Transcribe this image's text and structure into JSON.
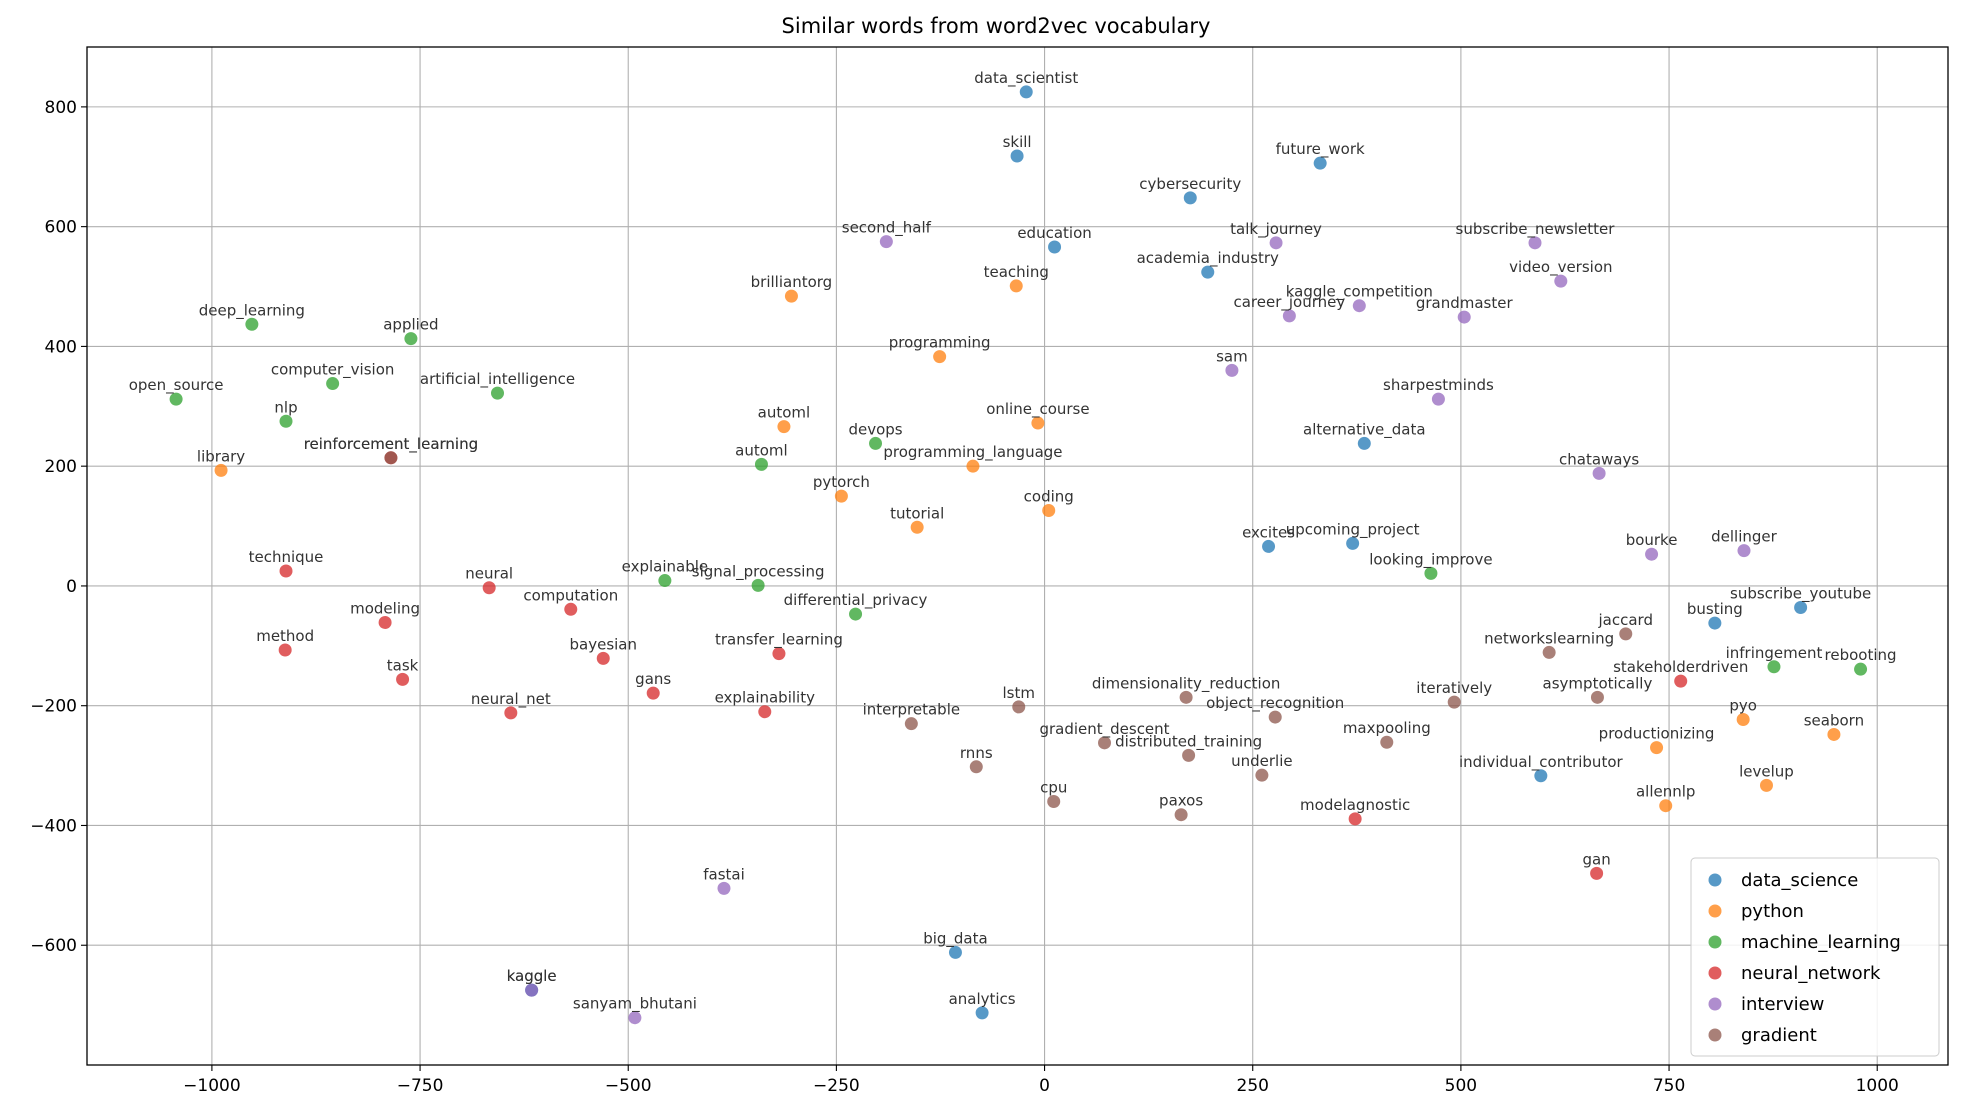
{
  "chart_data": {
    "type": "scatter",
    "title": "Similar words from word2vec vocabulary",
    "xlabel": "",
    "ylabel": "",
    "xlim": [
      -1150,
      1085
    ],
    "ylim": [
      -800,
      900
    ],
    "xticks": [
      -1000,
      -750,
      -500,
      -250,
      0,
      250,
      500,
      750,
      1000
    ],
    "yticks": [
      -600,
      -400,
      -200,
      0,
      200,
      400,
      600,
      800
    ],
    "grid": true,
    "legend_position": "lower-right",
    "series": [
      {
        "name": "data_science",
        "color": "#1f77b4",
        "points": [
          {
            "x": -22,
            "y": 825,
            "label": "data_scientist"
          },
          {
            "x": -33,
            "y": 718,
            "label": "skill"
          },
          {
            "x": 331,
            "y": 706,
            "label": "future_work"
          },
          {
            "x": 175,
            "y": 648,
            "label": "cybersecurity"
          },
          {
            "x": 12,
            "y": 566,
            "label": "education"
          },
          {
            "x": 196,
            "y": 524,
            "label": "academia_industry"
          },
          {
            "x": 384,
            "y": 238,
            "label": "alternative_data"
          },
          {
            "x": 269,
            "y": 66,
            "label": "excites"
          },
          {
            "x": 370,
            "y": 71,
            "label": "upcoming_project"
          },
          {
            "x": 805,
            "y": -62,
            "label": "busting"
          },
          {
            "x": 908,
            "y": -36,
            "label": "subscribe_youtube"
          },
          {
            "x": 596,
            "y": -317,
            "label": "individual_contributor"
          },
          {
            "x": -107,
            "y": -612,
            "label": "big_data"
          },
          {
            "x": -75,
            "y": -713,
            "label": "analytics"
          },
          {
            "x": -616,
            "y": -675,
            "label": "kaggle"
          }
        ]
      },
      {
        "name": "python",
        "color": "#ff7f0e",
        "points": [
          {
            "x": -304,
            "y": 484,
            "label": "brilliantorg"
          },
          {
            "x": -34,
            "y": 501,
            "label": "teaching"
          },
          {
            "x": -126,
            "y": 383,
            "label": "programming"
          },
          {
            "x": -313,
            "y": 266,
            "label": "automl"
          },
          {
            "x": -8,
            "y": 272,
            "label": "online_course"
          },
          {
            "x": -86,
            "y": 200,
            "label": "programming_language"
          },
          {
            "x": -244,
            "y": 150,
            "label": "pytorch"
          },
          {
            "x": 5,
            "y": 126,
            "label": "coding"
          },
          {
            "x": -153,
            "y": 98,
            "label": "tutorial"
          },
          {
            "x": -989,
            "y": 193,
            "label": "library"
          },
          {
            "x": 839,
            "y": -223,
            "label": "pyo"
          },
          {
            "x": 948,
            "y": -248,
            "label": "seaborn"
          },
          {
            "x": 735,
            "y": -270,
            "label": "productionizing"
          },
          {
            "x": 867,
            "y": -333,
            "label": "levelup"
          },
          {
            "x": 746,
            "y": -367,
            "label": "allennlp"
          }
        ]
      },
      {
        "name": "machine_learning",
        "color": "#2ca02c",
        "points": [
          {
            "x": -952,
            "y": 437,
            "label": "deep_learning"
          },
          {
            "x": -761,
            "y": 413,
            "label": "applied"
          },
          {
            "x": -1043,
            "y": 312,
            "label": "open_source"
          },
          {
            "x": -855,
            "y": 338,
            "label": "computer_vision"
          },
          {
            "x": -911,
            "y": 275,
            "label": "nlp"
          },
          {
            "x": -657,
            "y": 322,
            "label": "artificial_intelligence"
          },
          {
            "x": -203,
            "y": 238,
            "label": "devops"
          },
          {
            "x": -340,
            "y": 203,
            "label": "automl"
          },
          {
            "x": -456,
            "y": 9,
            "label": "explainable"
          },
          {
            "x": -344,
            "y": 1,
            "label": "signal_processing"
          },
          {
            "x": -227,
            "y": -47,
            "label": "differential_privacy"
          },
          {
            "x": 464,
            "y": 21,
            "label": "looking_improve"
          },
          {
            "x": 876,
            "y": -135,
            "label": "infringement"
          },
          {
            "x": 980,
            "y": -139,
            "label": "rebooting"
          }
        ]
      },
      {
        "name": "neural_network",
        "color": "#d62728",
        "points": [
          {
            "x": -785,
            "y": 214,
            "label": "reinforcement_learning"
          },
          {
            "x": -911,
            "y": 25,
            "label": "technique"
          },
          {
            "x": -667,
            "y": -3,
            "label": "neural"
          },
          {
            "x": -569,
            "y": -39,
            "label": "computation"
          },
          {
            "x": -792,
            "y": -61,
            "label": "modeling"
          },
          {
            "x": -912,
            "y": -107,
            "label": "method"
          },
          {
            "x": -530,
            "y": -121,
            "label": "bayesian"
          },
          {
            "x": -319,
            "y": -113,
            "label": "transfer_learning"
          },
          {
            "x": -771,
            "y": -156,
            "label": "task"
          },
          {
            "x": -470,
            "y": -179,
            "label": "gans"
          },
          {
            "x": -641,
            "y": -212,
            "label": "neural_net"
          },
          {
            "x": -336,
            "y": -210,
            "label": "explainability"
          },
          {
            "x": 764,
            "y": -159,
            "label": "stakeholderdriven"
          },
          {
            "x": 373,
            "y": -389,
            "label": "modelagnostic"
          },
          {
            "x": 663,
            "y": -480,
            "label": "gan"
          }
        ]
      },
      {
        "name": "interview",
        "color": "#9467bd",
        "points": [
          {
            "x": -190,
            "y": 575,
            "label": "second_half"
          },
          {
            "x": 278,
            "y": 573,
            "label": "talk_journey"
          },
          {
            "x": 589,
            "y": 573,
            "label": "subscribe_newsletter"
          },
          {
            "x": 620,
            "y": 509,
            "label": "video_version"
          },
          {
            "x": 378,
            "y": 468,
            "label": "kaggle_competition"
          },
          {
            "x": 294,
            "y": 451,
            "label": "career_journey"
          },
          {
            "x": 504,
            "y": 449,
            "label": "grandmaster"
          },
          {
            "x": 225,
            "y": 360,
            "label": "sam"
          },
          {
            "x": 473,
            "y": 312,
            "label": "sharpestminds"
          },
          {
            "x": 666,
            "y": 188,
            "label": "chataways"
          },
          {
            "x": 729,
            "y": 53,
            "label": "bourke"
          },
          {
            "x": 840,
            "y": 59,
            "label": "dellinger"
          },
          {
            "x": -385,
            "y": -505,
            "label": "fastai"
          },
          {
            "x": -616,
            "y": -675,
            "label": "kaggle"
          },
          {
            "x": -492,
            "y": -721,
            "label": "sanyam_bhutani"
          }
        ]
      },
      {
        "name": "gradient",
        "color": "#8c564b",
        "points": [
          {
            "x": -785,
            "y": 214,
            "label": "reinforcement_learning"
          },
          {
            "x": 698,
            "y": -80,
            "label": "jaccard"
          },
          {
            "x": 606,
            "y": -111,
            "label": "networkslearning"
          },
          {
            "x": 492,
            "y": -194,
            "label": "iteratively"
          },
          {
            "x": 664,
            "y": -186,
            "label": "asymptotically"
          },
          {
            "x": 170,
            "y": -186,
            "label": "dimensionality_reduction"
          },
          {
            "x": -31,
            "y": -202,
            "label": "lstm"
          },
          {
            "x": 277,
            "y": -219,
            "label": "object_recognition"
          },
          {
            "x": -160,
            "y": -230,
            "label": "interpretable"
          },
          {
            "x": 72,
            "y": -262,
            "label": "gradient_descent"
          },
          {
            "x": 411,
            "y": -261,
            "label": "maxpooling"
          },
          {
            "x": 173,
            "y": -283,
            "label": "distributed_training"
          },
          {
            "x": -82,
            "y": -302,
            "label": "rnns"
          },
          {
            "x": 261,
            "y": -316,
            "label": "underlie"
          },
          {
            "x": 11,
            "y": -360,
            "label": "cpu"
          },
          {
            "x": 164,
            "y": -382,
            "label": "paxos"
          }
        ]
      }
    ]
  }
}
